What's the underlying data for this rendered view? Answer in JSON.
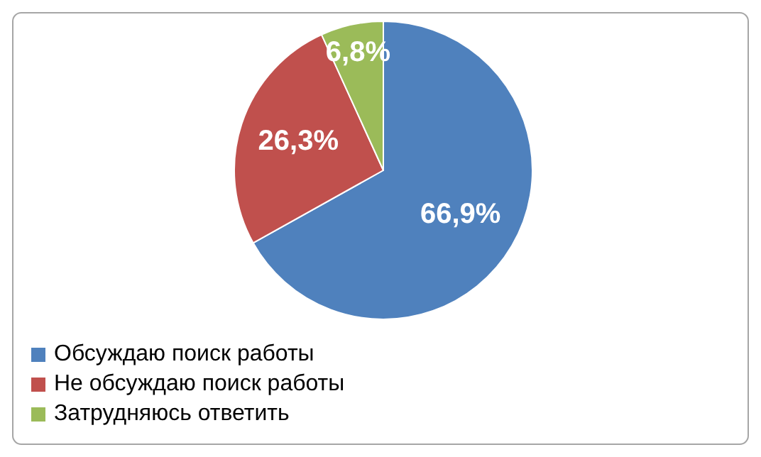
{
  "chart_data": {
    "type": "pie",
    "categories": [
      "Обсуждаю поиск работы",
      "Не обсуждаю поиск работы",
      "Затрудняюсь ответить"
    ],
    "values": [
      66.9,
      26.3,
      6.8
    ],
    "colors": [
      "#4f81bd",
      "#c0504d",
      "#9bbb59"
    ],
    "value_labels": [
      "66,9%",
      "26,3%",
      "6,8%"
    ],
    "legend": "bottom"
  }
}
